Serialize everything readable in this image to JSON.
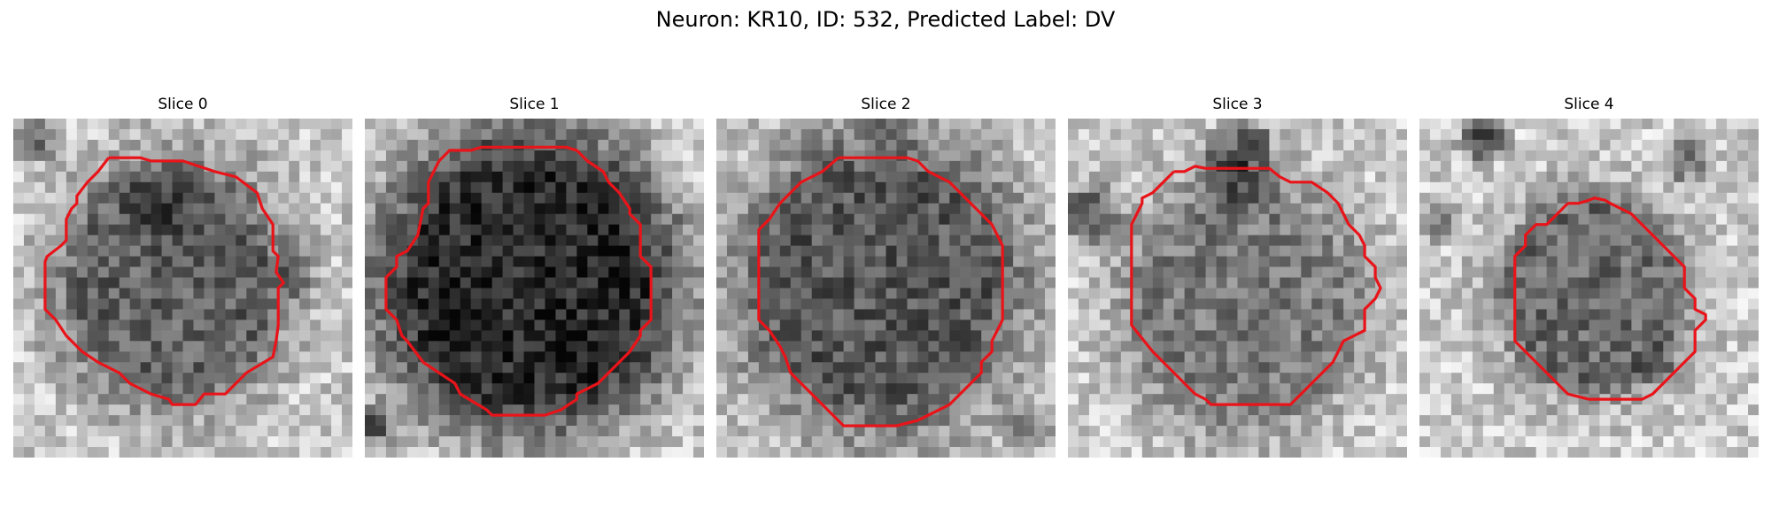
{
  "figure": {
    "title": "Neuron: KR10, ID: 532, Predicted Label: DV"
  },
  "panels": [
    {
      "title": "Slice 0",
      "image": "grayscale-microscopy-patch",
      "outline_color": "#e8141a"
    },
    {
      "title": "Slice 1",
      "image": "grayscale-microscopy-patch",
      "outline_color": "#e8141a"
    },
    {
      "title": "Slice 2",
      "image": "grayscale-microscopy-patch",
      "outline_color": "#e8141a"
    },
    {
      "title": "Slice 3",
      "image": "grayscale-microscopy-patch",
      "outline_color": "#e8141a"
    },
    {
      "title": "Slice 4",
      "image": "grayscale-microscopy-patch",
      "outline_color": "#e8141a"
    }
  ]
}
